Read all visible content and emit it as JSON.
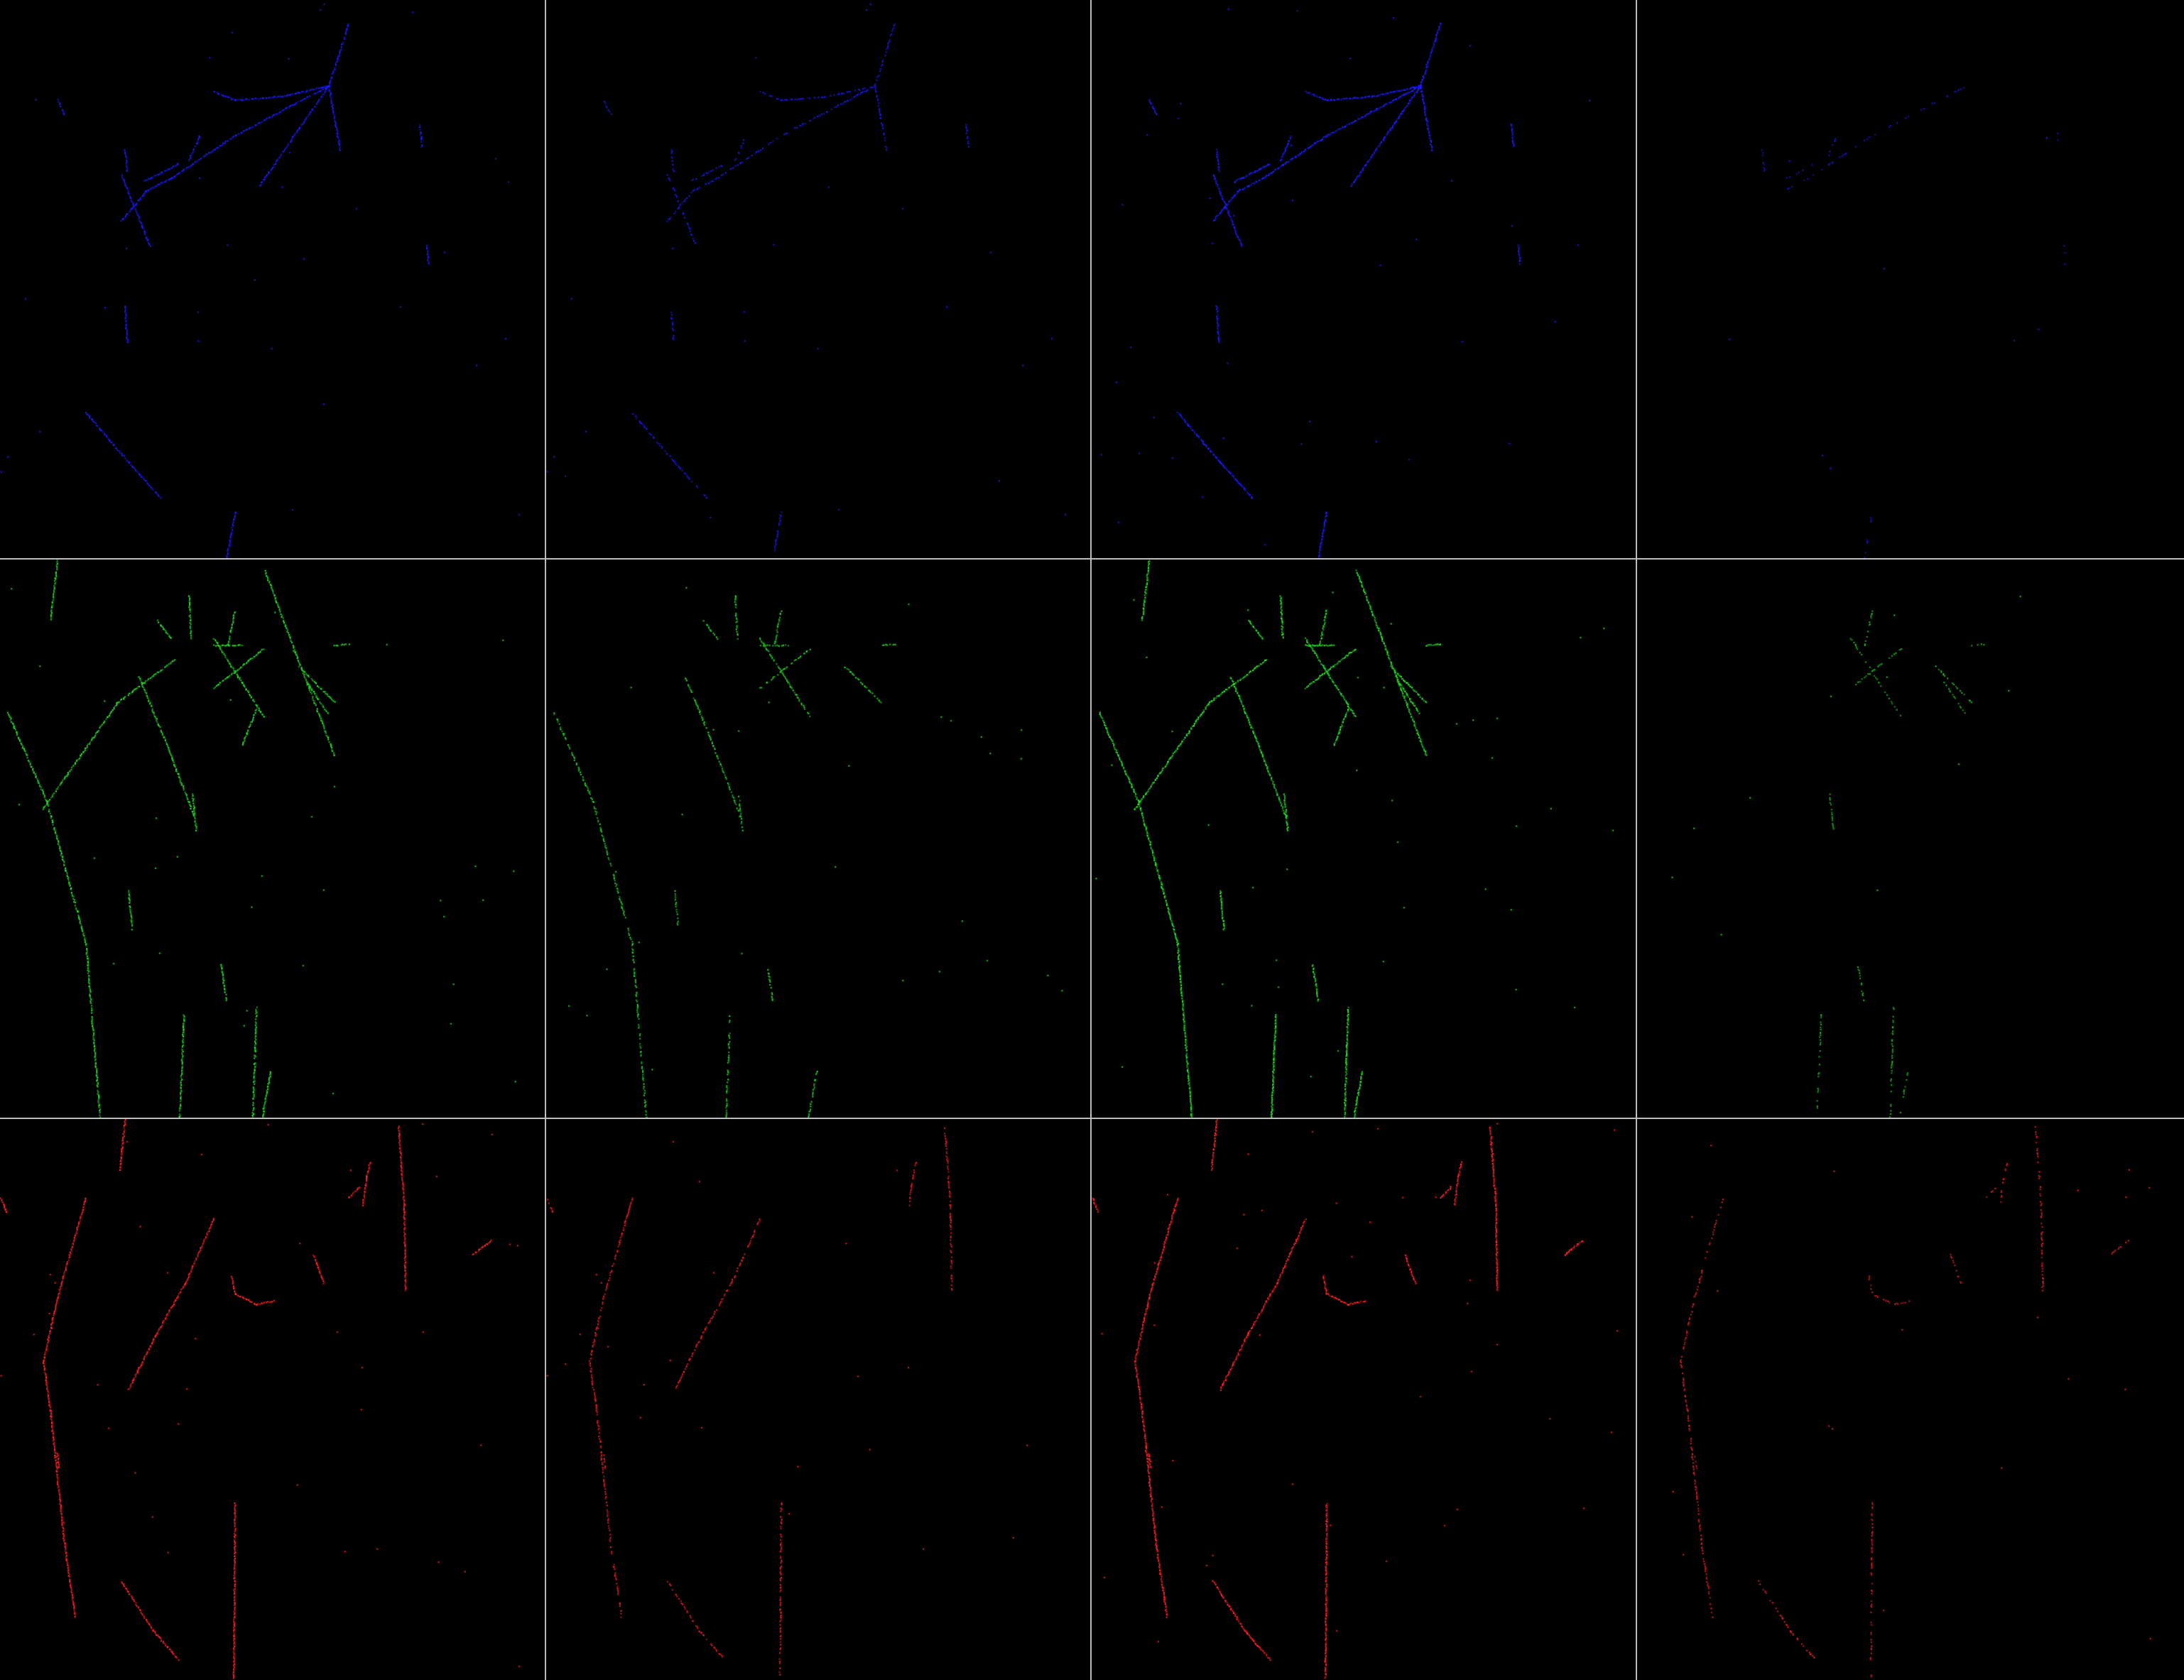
{
  "grid": {
    "rows": 3,
    "cols": 4,
    "separator_color": "#bdbdbd",
    "background": "#000000"
  },
  "views": [
    {
      "plane": "U",
      "color": "#1a1aff",
      "columns": [
        {
          "intensity": 0.85
        },
        {
          "intensity": 0.55
        },
        {
          "intensity": 0.95
        },
        {
          "intensity": 0.25
        }
      ]
    },
    {
      "plane": "V",
      "color": "#22dd22",
      "columns": [
        {
          "intensity": 0.85
        },
        {
          "intensity": 0.6
        },
        {
          "intensity": 0.95
        },
        {
          "intensity": 0.35
        }
      ]
    },
    {
      "plane": "W",
      "color": "#ff2020",
      "columns": [
        {
          "intensity": 0.9
        },
        {
          "intensity": 0.55
        },
        {
          "intensity": 0.95
        },
        {
          "intensity": 0.45
        }
      ]
    }
  ]
}
